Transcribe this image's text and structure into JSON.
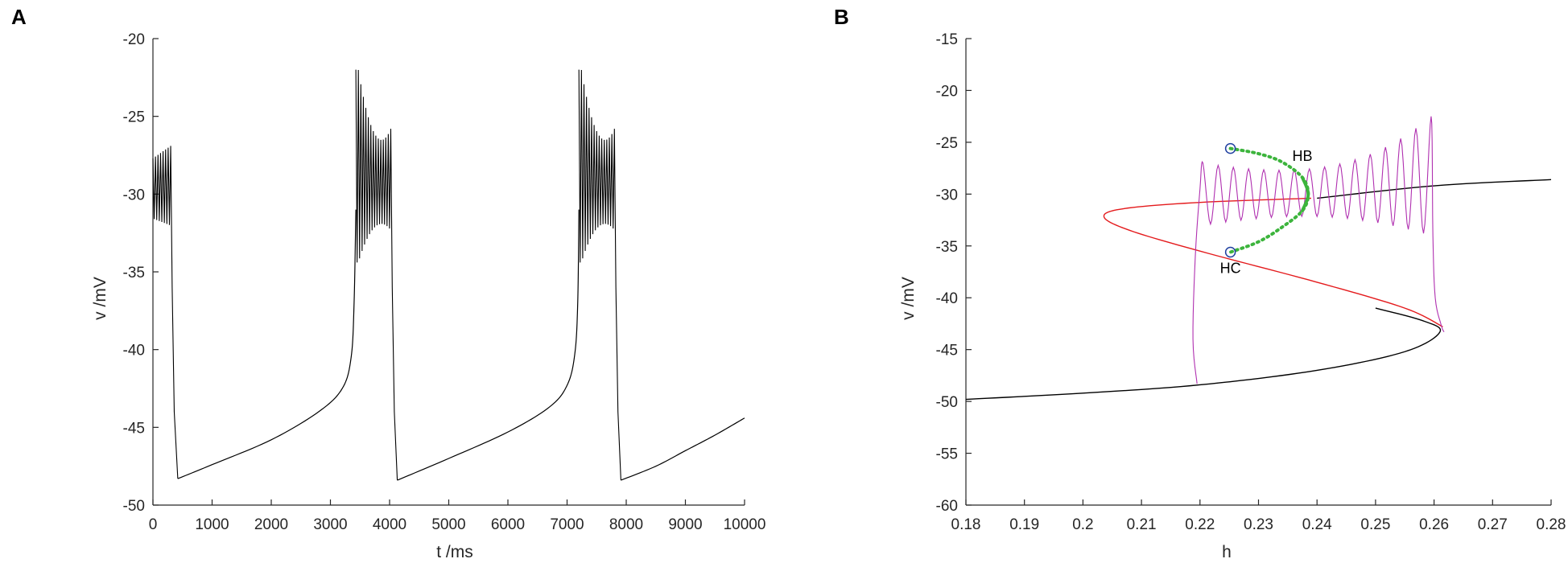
{
  "chart_data": [
    {
      "panel": "A",
      "type": "line",
      "title": "",
      "xlabel": "t /ms",
      "ylabel": "v /mV",
      "xlim": [
        0,
        10000
      ],
      "ylim": [
        -50,
        -20
      ],
      "xticks": [
        0,
        1000,
        2000,
        3000,
        4000,
        5000,
        6000,
        7000,
        8000,
        9000,
        10000
      ],
      "yticks": [
        -50,
        -45,
        -40,
        -35,
        -30,
        -25,
        -20
      ],
      "grid": false,
      "series": [
        {
          "color": "#000000",
          "bursts": [
            {
              "t_start": 0,
              "t_end": 300,
              "center": -30.2,
              "amplitude": [
                2.5,
                3.3
              ],
              "cycles": 7,
              "descend_to": -48.3,
              "descend_end": 420
            },
            {
              "t_start": 3430,
              "t_end": 4020,
              "center": -30.0,
              "amplitude": [
                7.5,
                3.0
              ],
              "cycles": 14,
              "descend_to": -48.4,
              "descend_end": 4130
            },
            {
              "t_start": 7200,
              "t_end": 7800,
              "center": -30.0,
              "amplitude": [
                7.5,
                3.0
              ],
              "cycles": 14,
              "descend_to": -48.4,
              "descend_end": 7910
            }
          ],
          "recovery": [
            {
              "t_start": 420,
              "t_end": 3430,
              "points": [
                [
                  420,
                  -48.3
                ],
                [
                  1000,
                  -47.4
                ],
                [
                  2000,
                  -45.8
                ],
                [
                  2800,
                  -44.0
                ],
                [
                  3200,
                  -42.5
                ],
                [
                  3350,
                  -40.5
                ],
                [
                  3400,
                  -37.0
                ],
                [
                  3430,
                  -31.0
                ]
              ]
            },
            {
              "t_start": 4130,
              "t_end": 7200,
              "points": [
                [
                  4130,
                  -48.4
                ],
                [
                  5000,
                  -47.0
                ],
                [
                  6000,
                  -45.3
                ],
                [
                  6700,
                  -43.7
                ],
                [
                  7000,
                  -42.3
                ],
                [
                  7130,
                  -40.3
                ],
                [
                  7180,
                  -37.0
                ],
                [
                  7200,
                  -31.0
                ]
              ]
            },
            {
              "t_start": 7910,
              "t_end": 10000,
              "points": [
                [
                  7910,
                  -48.4
                ],
                [
                  8500,
                  -47.5
                ],
                [
                  9000,
                  -46.5
                ],
                [
                  9500,
                  -45.5
                ],
                [
                  10000,
                  -44.4
                ]
              ]
            }
          ]
        }
      ]
    },
    {
      "panel": "B",
      "type": "line",
      "title": "",
      "xlabel": "h",
      "ylabel": "v /mV",
      "xlim": [
        0.18,
        0.28
      ],
      "ylim": [
        -60,
        -15
      ],
      "xticks": [
        0.18,
        0.19,
        0.2,
        0.21,
        0.22,
        0.23,
        0.24,
        0.25,
        0.26,
        0.27,
        0.28
      ],
      "yticks": [
        -60,
        -55,
        -50,
        -45,
        -40,
        -35,
        -30,
        -25,
        -20,
        -15
      ],
      "grid": false,
      "annotations": [
        {
          "text": "HB",
          "x": 0.2375,
          "y": -26.8
        },
        {
          "text": "HC",
          "x": 0.2252,
          "y": -37.6
        }
      ],
      "series": [
        {
          "name": "",
          "color": "#000000",
          "kind": "stable-branch",
          "points": [
            [
              0.18,
              -49.8
            ],
            [
              0.2,
              -49.2
            ],
            [
              0.22,
              -48.4
            ],
            [
              0.24,
              -47.0
            ],
            [
              0.255,
              -45.2
            ],
            [
              0.261,
              -43.3
            ],
            [
              0.258,
              -42.2
            ],
            [
              0.25,
              -41.0
            ],
            [
              0.24,
              -30.4
            ],
            [
              0.26,
              -29.2
            ],
            [
              0.28,
              -28.6
            ]
          ]
        },
        {
          "name": "",
          "color": "#e41a1c",
          "kind": "unstable-branch",
          "points": [
            [
              0.2615,
              -42.8
            ],
            [
              0.255,
              -41.0
            ],
            [
              0.24,
              -38.5
            ],
            [
              0.22,
              -35.5
            ],
            [
              0.208,
              -33.5
            ],
            [
              0.2036,
              -32.2
            ],
            [
              0.207,
              -31.4
            ],
            [
              0.22,
              -30.8
            ],
            [
              0.239,
              -30.4
            ]
          ]
        },
        {
          "name": "",
          "color": "#3cb43c",
          "kind": "periodic-orbit-envelope",
          "points": [
            [
              0.2252,
              -25.6
            ],
            [
              0.23,
              -26.1
            ],
            [
              0.234,
              -26.9
            ],
            [
              0.2375,
              -28.4
            ],
            [
              0.2385,
              -30.0
            ],
            [
              0.2375,
              -31.6
            ],
            [
              0.234,
              -33.2
            ],
            [
              0.23,
              -34.6
            ],
            [
              0.2252,
              -35.6
            ]
          ]
        },
        {
          "name": "",
          "color": "#b030b0",
          "kind": "trajectory",
          "cycles": 15,
          "h_start": 0.2205,
          "h_end": 0.2595,
          "upper": [
            -27.0,
            -22.5
          ],
          "lower": [
            -33.0,
            -34.0
          ],
          "drop_to": -48.3,
          "points": [
            [
              0.2195,
              -48.3
            ],
            [
              0.219,
              -44.0
            ],
            [
              0.2195,
              -36.0
            ],
            [
              0.2205,
              -30.0
            ],
            [
              0.259,
              -32.0
            ],
            [
              0.26,
              -42.0
            ],
            [
              0.2615,
              -43.0
            ]
          ]
        }
      ],
      "markers": [
        {
          "x": 0.2252,
          "y": -25.6,
          "color": "#1f3fa0",
          "shape": "circle"
        },
        {
          "x": 0.2252,
          "y": -35.6,
          "color": "#1f3fa0",
          "shape": "circle"
        }
      ]
    }
  ]
}
